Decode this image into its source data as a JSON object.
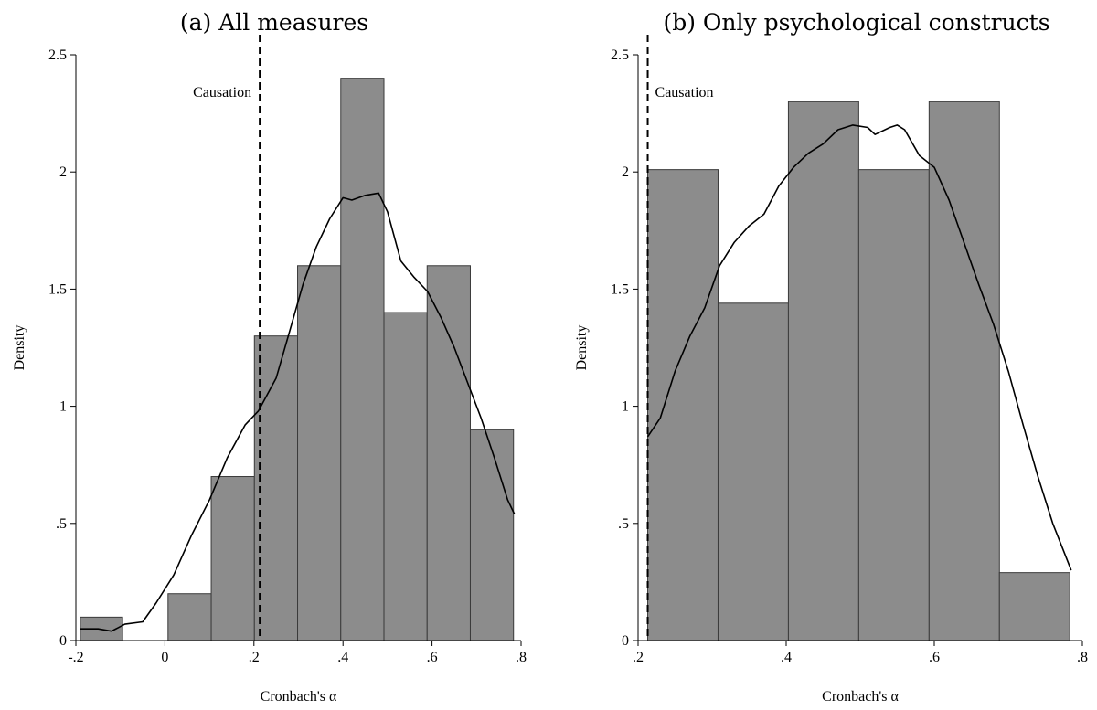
{
  "chart_data": [
    {
      "type": "bar",
      "panel_title": "(a) All measures",
      "xlabel": "Cronbach's α",
      "ylabel": "Density",
      "xlim": [
        -0.2,
        0.8
      ],
      "ylim": [
        0,
        2.5
      ],
      "x_ticks": [
        {
          "value": -0.2,
          "label": "-.2"
        },
        {
          "value": 0,
          "label": "0"
        },
        {
          "value": 0.2,
          "label": ".2"
        },
        {
          "value": 0.4,
          "label": ".4"
        },
        {
          "value": 0.6,
          "label": ".6"
        },
        {
          "value": 0.8,
          "label": ".8"
        }
      ],
      "y_ticks": [
        {
          "value": 0,
          "label": "0"
        },
        {
          "value": 0.5,
          "label": ".5"
        },
        {
          "value": 1,
          "label": "1"
        },
        {
          "value": 1.5,
          "label": "1.5"
        },
        {
          "value": 2,
          "label": "2"
        },
        {
          "value": 2.5,
          "label": "2.5"
        }
      ],
      "bins": [
        {
          "x0": -0.19,
          "x1": -0.095,
          "density": 0.1
        },
        {
          "x0": 0.007,
          "x1": 0.104,
          "density": 0.2
        },
        {
          "x0": 0.104,
          "x1": 0.201,
          "density": 0.7
        },
        {
          "x0": 0.201,
          "x1": 0.298,
          "density": 1.3
        },
        {
          "x0": 0.298,
          "x1": 0.395,
          "density": 1.6
        },
        {
          "x0": 0.395,
          "x1": 0.492,
          "density": 2.4
        },
        {
          "x0": 0.492,
          "x1": 0.589,
          "density": 1.4
        },
        {
          "x0": 0.589,
          "x1": 0.686,
          "density": 1.6
        },
        {
          "x0": 0.686,
          "x1": 0.783,
          "density": 0.9
        }
      ],
      "kde": {
        "x": [
          -0.19,
          -0.15,
          -0.12,
          -0.09,
          -0.05,
          -0.02,
          0.02,
          0.06,
          0.1,
          0.14,
          0.18,
          0.21,
          0.25,
          0.28,
          0.31,
          0.34,
          0.37,
          0.4,
          0.42,
          0.45,
          0.48,
          0.5,
          0.53,
          0.56,
          0.59,
          0.62,
          0.65,
          0.68,
          0.71,
          0.74,
          0.77,
          0.785
        ],
        "y": [
          0.05,
          0.05,
          0.04,
          0.07,
          0.08,
          0.16,
          0.28,
          0.45,
          0.6,
          0.78,
          0.92,
          0.98,
          1.12,
          1.32,
          1.52,
          1.68,
          1.8,
          1.89,
          1.88,
          1.9,
          1.91,
          1.83,
          1.62,
          1.55,
          1.49,
          1.38,
          1.25,
          1.1,
          0.95,
          0.78,
          0.6,
          0.54
        ]
      },
      "reference_line": {
        "x": 0.213,
        "label": "Causation"
      }
    },
    {
      "type": "bar",
      "panel_title": "(b) Only psychological constructs",
      "xlabel": "Cronbach's α",
      "ylabel": "Density",
      "xlim": [
        0.2,
        0.8
      ],
      "ylim": [
        0,
        2.5
      ],
      "x_ticks": [
        {
          "value": 0.2,
          "label": ".2"
        },
        {
          "value": 0.4,
          "label": ".4"
        },
        {
          "value": 0.6,
          "label": ".6"
        },
        {
          "value": 0.8,
          "label": ".8"
        }
      ],
      "y_ticks": [
        {
          "value": 0,
          "label": "0"
        },
        {
          "value": 0.5,
          "label": ".5"
        },
        {
          "value": 1,
          "label": "1"
        },
        {
          "value": 1.5,
          "label": "1.5"
        },
        {
          "value": 2,
          "label": "2"
        },
        {
          "value": 2.5,
          "label": "2.5"
        }
      ],
      "bins": [
        {
          "x0": 0.213,
          "x1": 0.308,
          "density": 2.01
        },
        {
          "x0": 0.308,
          "x1": 0.403,
          "density": 1.44
        },
        {
          "x0": 0.403,
          "x1": 0.498,
          "density": 2.3
        },
        {
          "x0": 0.498,
          "x1": 0.593,
          "density": 2.01
        },
        {
          "x0": 0.593,
          "x1": 0.688,
          "density": 2.3
        },
        {
          "x0": 0.688,
          "x1": 0.783,
          "density": 0.29
        }
      ],
      "kde": {
        "x": [
          0.213,
          0.23,
          0.25,
          0.27,
          0.29,
          0.31,
          0.33,
          0.35,
          0.37,
          0.39,
          0.41,
          0.43,
          0.45,
          0.47,
          0.49,
          0.51,
          0.52,
          0.54,
          0.55,
          0.56,
          0.58,
          0.6,
          0.62,
          0.64,
          0.66,
          0.68,
          0.7,
          0.72,
          0.74,
          0.76,
          0.785
        ],
        "y": [
          0.87,
          0.95,
          1.15,
          1.3,
          1.42,
          1.6,
          1.7,
          1.77,
          1.82,
          1.94,
          2.02,
          2.08,
          2.12,
          2.18,
          2.2,
          2.19,
          2.16,
          2.19,
          2.2,
          2.18,
          2.07,
          2.02,
          1.88,
          1.7,
          1.52,
          1.35,
          1.15,
          0.92,
          0.7,
          0.5,
          0.3
        ]
      },
      "reference_line": {
        "x": 0.213,
        "label": "Causation"
      }
    }
  ]
}
